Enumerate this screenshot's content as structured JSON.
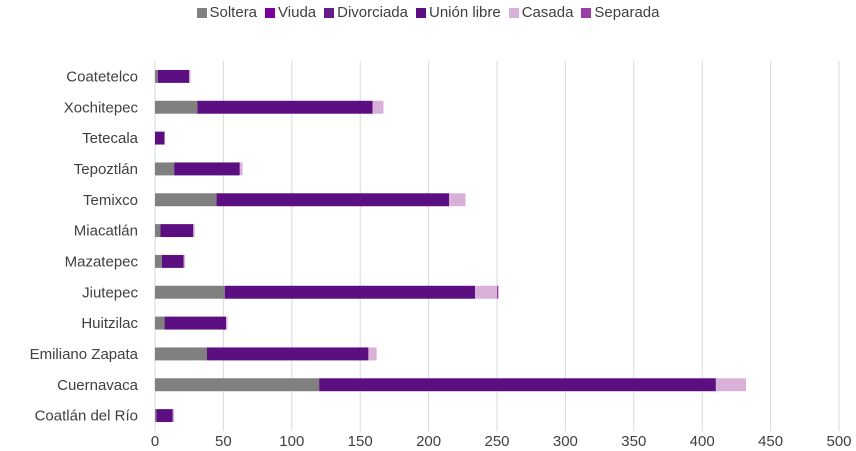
{
  "chart_data": {
    "type": "bar",
    "orientation": "horizontal",
    "stacked": true,
    "categories": [
      "Coatetelco",
      "Xochitepec",
      "Tetecala",
      "Tepoztlán",
      "Temixco",
      "Miacatlán",
      "Mazatepec",
      "Jiutepec",
      "Huitzilac",
      "Emiliano Zapata",
      "Cuernavaca",
      "Coatlán del Río"
    ],
    "series": [
      {
        "name": "Soltera",
        "color": "#808080",
        "values": [
          2,
          31,
          0,
          14,
          45,
          4,
          5,
          51,
          7,
          38,
          120,
          1
        ]
      },
      {
        "name": "Viuda",
        "color": "#7a0099",
        "values": [
          0,
          0,
          0,
          0,
          0,
          0,
          0,
          0,
          0,
          0,
          0,
          0
        ]
      },
      {
        "name": "Divorciada",
        "color": "#6a1a8c",
        "values": [
          0,
          0,
          0,
          0,
          0,
          0,
          0,
          0,
          0,
          0,
          0,
          0
        ]
      },
      {
        "name": "Unión libre",
        "color": "#5c0f80",
        "values": [
          23,
          128,
          7,
          48,
          170,
          24,
          16,
          183,
          45,
          118,
          290,
          12
        ]
      },
      {
        "name": "Casada",
        "color": "#d8b0d8",
        "values": [
          1,
          8,
          0,
          2,
          12,
          1,
          1,
          16,
          1,
          6,
          22,
          1
        ]
      },
      {
        "name": "Separada",
        "color": "#9a3da8",
        "values": [
          0,
          0,
          0,
          0,
          0,
          0,
          0,
          1,
          0,
          0,
          0,
          0
        ]
      }
    ],
    "xlim": [
      0,
      500
    ],
    "xticks": [
      0,
      50,
      100,
      150,
      200,
      250,
      300,
      350,
      400,
      450,
      500
    ],
    "grid": true,
    "legend": "top"
  }
}
